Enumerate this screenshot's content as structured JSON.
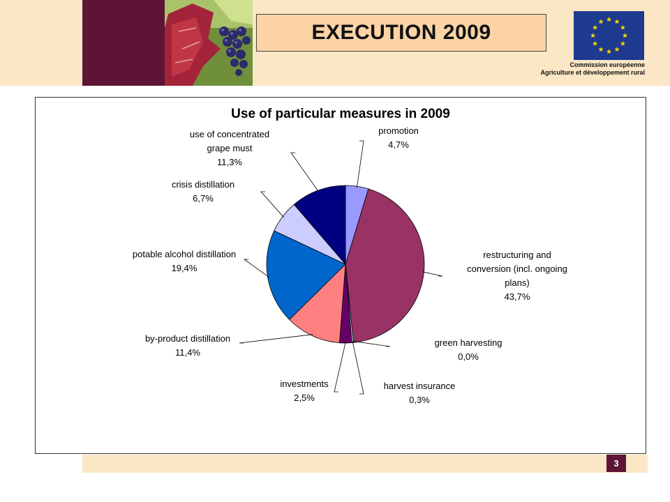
{
  "header": {
    "title": "EXECUTION 2009",
    "org_line1": "Commission européenne",
    "org_line2": "Agriculture et développement rural"
  },
  "page_number": "3",
  "colors": {
    "band": "#fbe6c6",
    "maroon": "#5e1535",
    "title_box": "#fbd3a6",
    "eu_blue": "#1d3a8f",
    "eu_star": "#ffd400"
  },
  "chart_data": {
    "type": "pie",
    "title": "Use of particular measures in 2009",
    "start_angle_deg": 0,
    "direction": "clockwise",
    "slices": [
      {
        "label_lines": [
          "promotion"
        ],
        "value": 4.7,
        "value_label": "4,7%",
        "color": "#9999ff"
      },
      {
        "label_lines": [
          "restructuring and",
          "conversion (incl. ongoing",
          "plans)"
        ],
        "value": 43.7,
        "value_label": "43,7%",
        "color": "#993366"
      },
      {
        "label_lines": [
          "green harvesting"
        ],
        "value": 0.0,
        "value_label": "0,0%",
        "color": "#ffffcc"
      },
      {
        "label_lines": [
          "harvest insurance"
        ],
        "value": 0.3,
        "value_label": "0,3%",
        "color": "#ccffff"
      },
      {
        "label_lines": [
          "investments"
        ],
        "value": 2.5,
        "value_label": "2,5%",
        "color": "#660066"
      },
      {
        "label_lines": [
          "by-product distillation"
        ],
        "value": 11.4,
        "value_label": "11,4%",
        "color": "#ff8080"
      },
      {
        "label_lines": [
          "potable alcohol distillation"
        ],
        "value": 19.4,
        "value_label": "19,4%",
        "color": "#0066cc"
      },
      {
        "label_lines": [
          "crisis distillation"
        ],
        "value": 6.7,
        "value_label": "6,7%",
        "color": "#ccccff"
      },
      {
        "label_lines": [
          "use of concentrated",
          "grape must"
        ],
        "value": 11.3,
        "value_label": "11,3%",
        "color": "#000080"
      }
    ]
  }
}
